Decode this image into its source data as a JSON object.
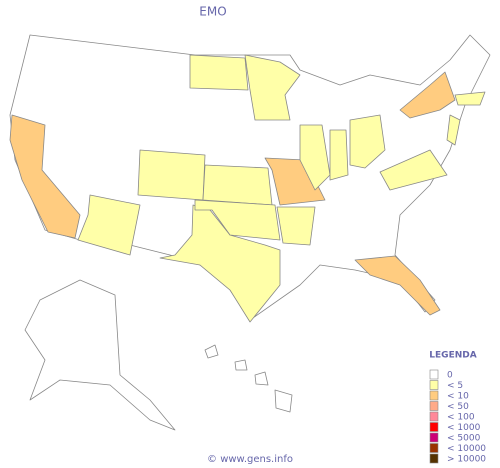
{
  "title": "EMO",
  "legend": {
    "title": "LEGENDA",
    "items": [
      {
        "label": "0",
        "color": "#ffffff"
      },
      {
        "label": "< 5",
        "color": "#ffffa8"
      },
      {
        "label": "< 10",
        "color": "#ffcc80"
      },
      {
        "label": "< 50",
        "color": "#ffaa88"
      },
      {
        "label": "< 100",
        "color": "#ff8899"
      },
      {
        "label": "< 1000",
        "color": "#ff0000"
      },
      {
        "label": "< 5000",
        "color": "#cc0077"
      },
      {
        "label": "< 10000",
        "color": "#993300"
      },
      {
        "label": "> 10000",
        "color": "#553300"
      }
    ]
  },
  "footer": "© www.gens.info"
}
